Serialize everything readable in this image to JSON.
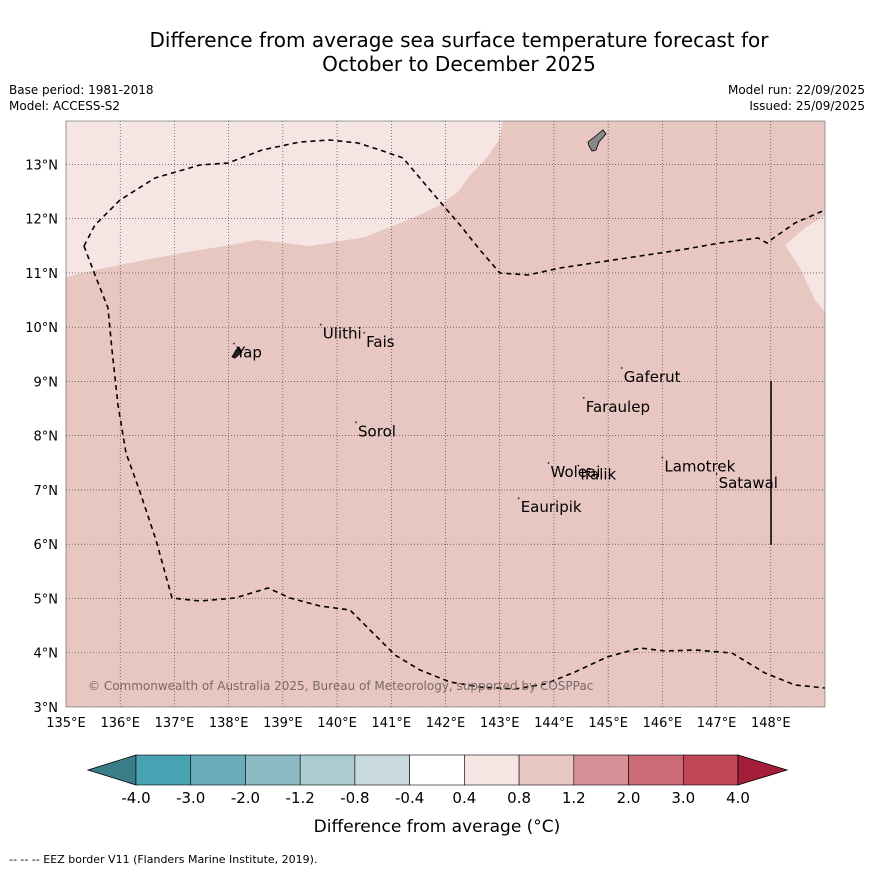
{
  "title": {
    "line1": "Difference from average sea surface temperature forecast for",
    "line2": "October to December 2025"
  },
  "meta": {
    "base_period": "Base period: 1981-2018",
    "model": "Model: ACCESS-S2",
    "model_run": "Model run: 22/09/2025",
    "issued": "Issued: 25/09/2025"
  },
  "axes": {
    "lon_ticks": [
      "135°E",
      "136°E",
      "137°E",
      "138°E",
      "139°E",
      "140°E",
      "141°E",
      "142°E",
      "143°E",
      "144°E",
      "145°E",
      "146°E",
      "147°E",
      "148°E"
    ],
    "lat_ticks": [
      "3°N",
      "4°N",
      "5°N",
      "6°N",
      "7°N",
      "8°N",
      "9°N",
      "10°N",
      "11°N",
      "12°N",
      "13°N"
    ],
    "lon_values": [
      135,
      136,
      137,
      138,
      139,
      140,
      141,
      142,
      143,
      144,
      145,
      146,
      147,
      148
    ],
    "lat_values": [
      3,
      4,
      5,
      6,
      7,
      8,
      9,
      10,
      11,
      12,
      13
    ],
    "lon_range": [
      135,
      149
    ],
    "lat_range": [
      3,
      13.8
    ]
  },
  "places": [
    {
      "name": "Yap",
      "lon": 138.1,
      "lat": 9.55
    },
    {
      "name": "Ulithi",
      "lon": 139.7,
      "lat": 9.9
    },
    {
      "name": "Fais",
      "lon": 140.5,
      "lat": 9.75
    },
    {
      "name": "Sorol",
      "lon": 140.35,
      "lat": 8.1
    },
    {
      "name": "Gaferut",
      "lon": 145.25,
      "lat": 9.1
    },
    {
      "name": "Faraulep",
      "lon": 144.55,
      "lat": 8.55
    },
    {
      "name": "Woleai",
      "lon": 143.9,
      "lat": 7.35
    },
    {
      "name": "Ifalik",
      "lon": 144.45,
      "lat": 7.3
    },
    {
      "name": "Lamotrek",
      "lon": 146.0,
      "lat": 7.45
    },
    {
      "name": "Satawal",
      "lon": 147.0,
      "lat": 7.15
    },
    {
      "name": "Eauripik",
      "lon": 143.35,
      "lat": 6.7
    }
  ],
  "copyright": "© Commonwealth of Australia 2025, Bureau of Meteorology, supported by COSPPac",
  "colorbar": {
    "labels": [
      "-4.0",
      "-3.0",
      "-2.0",
      "-1.2",
      "-0.8",
      "-0.4",
      "0.4",
      "0.8",
      "1.2",
      "2.0",
      "3.0",
      "4.0"
    ],
    "colors": [
      "#48a2b2",
      "#6aacba",
      "#8bbac4",
      "#aacbd1",
      "#c8dade",
      "#ffffff",
      "#f5e6e4",
      "#e8c6c2",
      "#d89097",
      "#cc6b75",
      "#c04556"
    ],
    "under_color": "#3a7d88",
    "over_color": "#a41e3a",
    "label": "Difference from average (°C)"
  },
  "legend_footer": "--  --  -- EEZ border V11 (Flanders Marine Institute, 2019)."
}
